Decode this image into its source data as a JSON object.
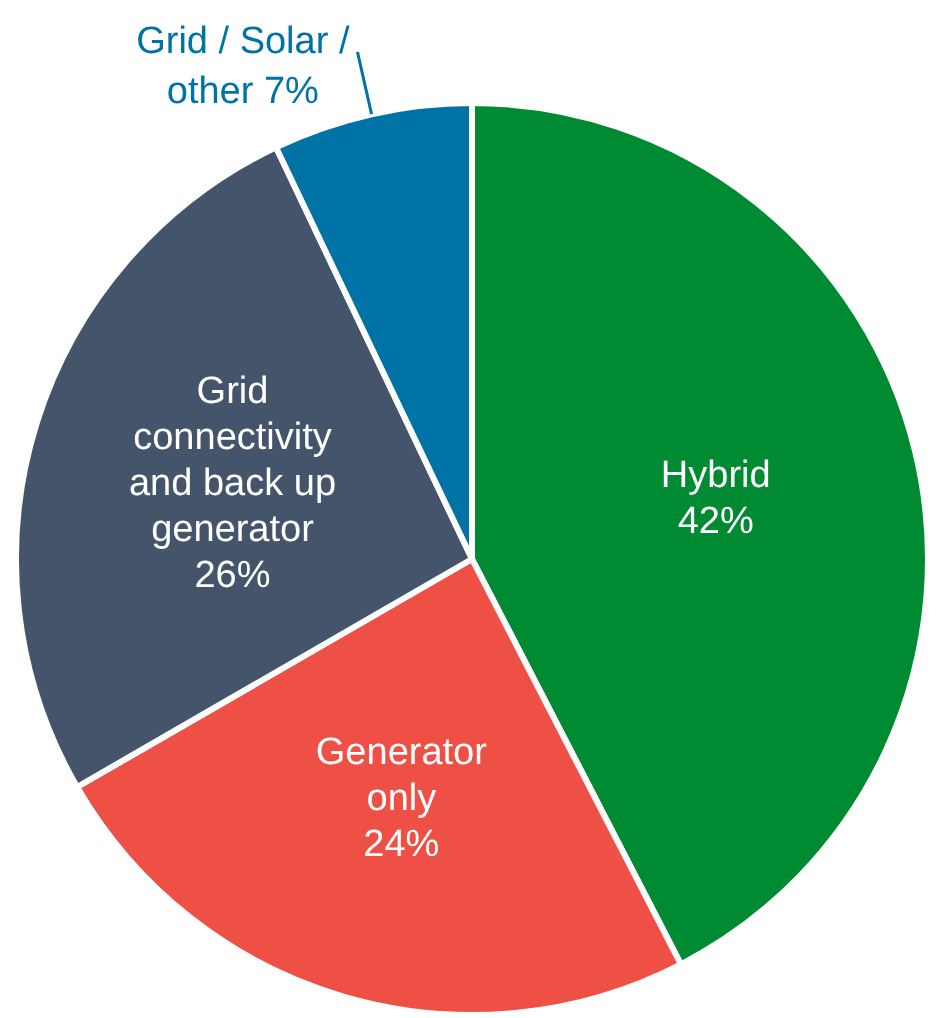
{
  "chart_data": {
    "type": "pie",
    "categories": [
      "Hybrid",
      "Generator only",
      "Grid connectivity and back up generator",
      "Grid / Solar / other"
    ],
    "values": [
      42,
      24,
      26,
      7
    ],
    "value_labels": [
      "42%",
      "24%",
      "26%",
      "7%"
    ],
    "colors": [
      "#008a32",
      "#ef5046",
      "#44546a",
      "#0073a6"
    ],
    "legend": false
  }
}
